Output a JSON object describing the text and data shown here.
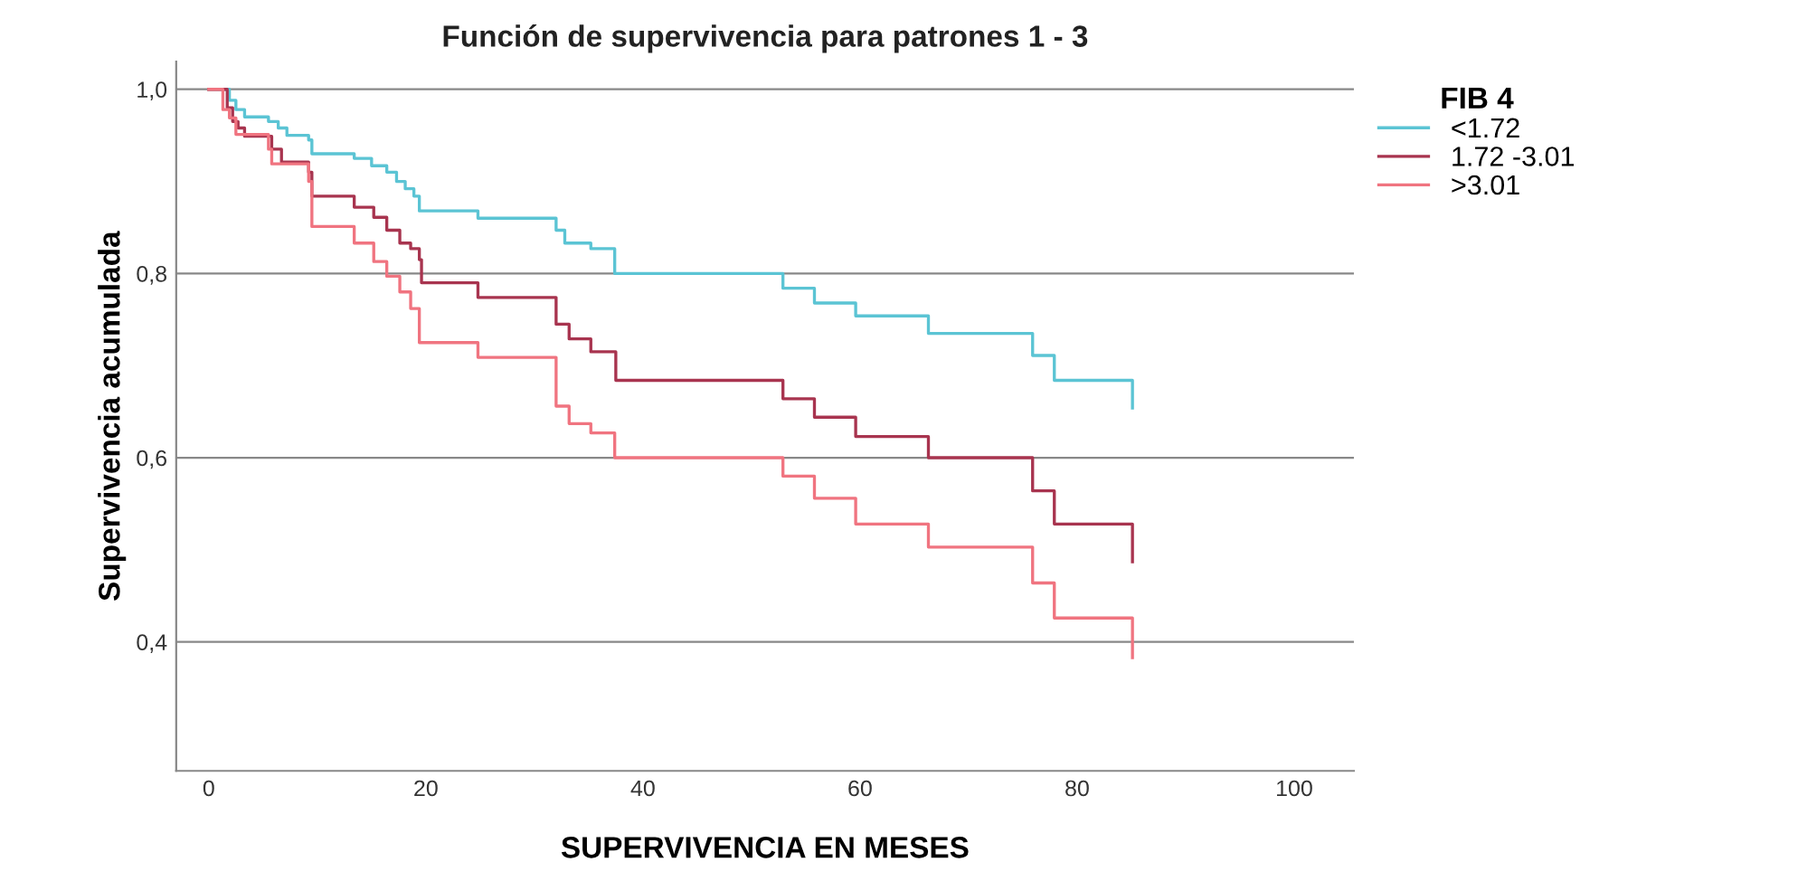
{
  "chart_data": {
    "type": "step",
    "title": "Función de supervivencia para patrones 1 - 3",
    "xlabel": "SUPERVIVENCIA EN MESES",
    "ylabel": "Supervivencia acumulada",
    "legend_title": "FIB 4",
    "legend": "top right",
    "grid": "y",
    "xlim": [
      -3,
      105.5
    ],
    "ylim": [
      0.26,
      1.03
    ],
    "xticks": [
      0,
      20,
      40,
      60,
      80,
      100
    ],
    "yticks": [
      {
        "value": 0.4,
        "label": "0,4"
      },
      {
        "value": 0.6,
        "label": "0,6"
      },
      {
        "value": 0.8,
        "label": "0,8"
      },
      {
        "value": 1.0,
        "label": "1,0"
      }
    ],
    "series": [
      {
        "name": "<1.72",
        "color": "#5bc4d4",
        "x": [
          0,
          1.9,
          2.5,
          3.3,
          5.5,
          6.4,
          7.2,
          9.2,
          9.5,
          13.4,
          15,
          16.4,
          17.3,
          18.1,
          18.9,
          19.4,
          24.8,
          32,
          32.8,
          35.2,
          37.4,
          52.9,
          55.8,
          59.6,
          66.3,
          75.9,
          77.9,
          85.1
        ],
        "values": [
          1.0,
          0.988,
          0.978,
          0.97,
          0.965,
          0.958,
          0.95,
          0.945,
          0.93,
          0.925,
          0.917,
          0.91,
          0.9,
          0.892,
          0.884,
          0.868,
          0.86,
          0.847,
          0.833,
          0.827,
          0.8,
          0.784,
          0.768,
          0.754,
          0.735,
          0.711,
          0.684,
          0.654
        ]
      },
      {
        "name": "1.72 -3.01",
        "color": "#a8344f",
        "x": [
          0,
          1.7,
          2.2,
          2.7,
          3.3,
          5.8,
          6.7,
          9.2,
          9.5,
          13.4,
          15.2,
          16.4,
          17.6,
          18.6,
          19.4,
          19.6,
          24.8,
          32,
          33.2,
          35.2,
          37.5,
          52.9,
          55.8,
          59.6,
          66.3,
          75.9,
          77.9,
          85.1
        ],
        "values": [
          1.0,
          0.98,
          0.965,
          0.958,
          0.949,
          0.935,
          0.921,
          0.91,
          0.884,
          0.872,
          0.861,
          0.847,
          0.833,
          0.827,
          0.815,
          0.79,
          0.774,
          0.745,
          0.729,
          0.715,
          0.684,
          0.664,
          0.644,
          0.623,
          0.6,
          0.564,
          0.528,
          0.487
        ]
      },
      {
        "name": ">3.01",
        "color": "#f07480",
        "x": [
          0,
          1.3,
          1.9,
          2.5,
          5.5,
          5.8,
          9.2,
          9.5,
          13.4,
          15.2,
          16.4,
          17.6,
          18.6,
          19.4,
          24.8,
          32,
          33.2,
          35.2,
          37.4,
          52.9,
          55.8,
          59.6,
          66.3,
          75.9,
          77.9,
          85.1
        ],
        "values": [
          1.0,
          0.978,
          0.969,
          0.951,
          0.935,
          0.919,
          0.9,
          0.851,
          0.833,
          0.813,
          0.797,
          0.78,
          0.762,
          0.725,
          0.709,
          0.656,
          0.637,
          0.627,
          0.6,
          0.58,
          0.556,
          0.528,
          0.503,
          0.464,
          0.426,
          0.383
        ]
      }
    ]
  }
}
